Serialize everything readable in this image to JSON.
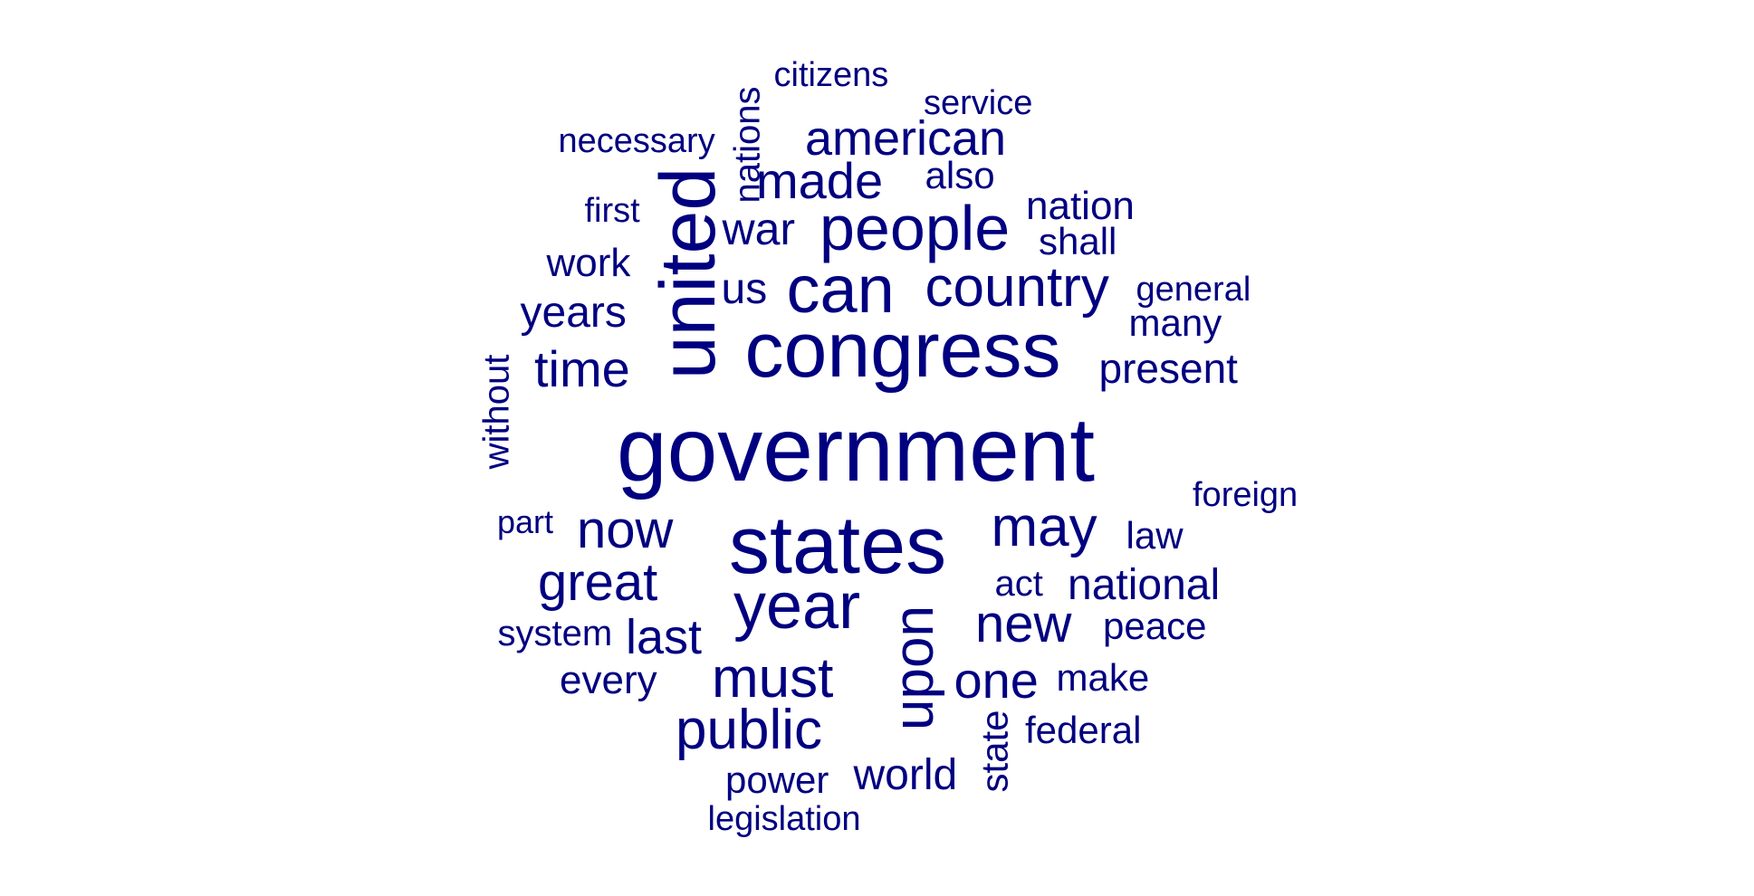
{
  "palette": {
    "word_color": "#000080",
    "background": "#ffffff"
  },
  "words": [
    {
      "text": "government",
      "rotated": false
    },
    {
      "text": "states",
      "rotated": false
    },
    {
      "text": "congress",
      "rotated": false
    },
    {
      "text": "united",
      "rotated": true
    },
    {
      "text": "year",
      "rotated": false
    },
    {
      "text": "people",
      "rotated": false
    },
    {
      "text": "can",
      "rotated": false
    },
    {
      "text": "country",
      "rotated": false
    },
    {
      "text": "may",
      "rotated": false
    },
    {
      "text": "upon",
      "rotated": true
    },
    {
      "text": "must",
      "rotated": false
    },
    {
      "text": "public",
      "rotated": false
    },
    {
      "text": "now",
      "rotated": false
    },
    {
      "text": "great",
      "rotated": false
    },
    {
      "text": "new",
      "rotated": false
    },
    {
      "text": "made",
      "rotated": false
    },
    {
      "text": "american",
      "rotated": false
    },
    {
      "text": "one",
      "rotated": false
    },
    {
      "text": "time",
      "rotated": false
    },
    {
      "text": "last",
      "rotated": false
    },
    {
      "text": "years",
      "rotated": false
    },
    {
      "text": "war",
      "rotated": false
    },
    {
      "text": "us",
      "rotated": false
    },
    {
      "text": "world",
      "rotated": false
    },
    {
      "text": "national",
      "rotated": false
    },
    {
      "text": "present",
      "rotated": false
    },
    {
      "text": "every",
      "rotated": false
    },
    {
      "text": "nation",
      "rotated": false
    },
    {
      "text": "also",
      "rotated": false
    },
    {
      "text": "shall",
      "rotated": false
    },
    {
      "text": "work",
      "rotated": false
    },
    {
      "text": "many",
      "rotated": false
    },
    {
      "text": "law",
      "rotated": false
    },
    {
      "text": "peace",
      "rotated": false
    },
    {
      "text": "make",
      "rotated": false
    },
    {
      "text": "federal",
      "rotated": false
    },
    {
      "text": "power",
      "rotated": false
    },
    {
      "text": "state",
      "rotated": true
    },
    {
      "text": "nations",
      "rotated": true
    },
    {
      "text": "without",
      "rotated": true
    },
    {
      "text": "foreign",
      "rotated": false
    },
    {
      "text": "act",
      "rotated": false
    },
    {
      "text": "system",
      "rotated": false
    },
    {
      "text": "citizens",
      "rotated": false
    },
    {
      "text": "service",
      "rotated": false
    },
    {
      "text": "necessary",
      "rotated": false
    },
    {
      "text": "first",
      "rotated": false
    },
    {
      "text": "general",
      "rotated": false
    },
    {
      "text": "part",
      "rotated": false
    },
    {
      "text": "legislation",
      "rotated": false
    }
  ]
}
